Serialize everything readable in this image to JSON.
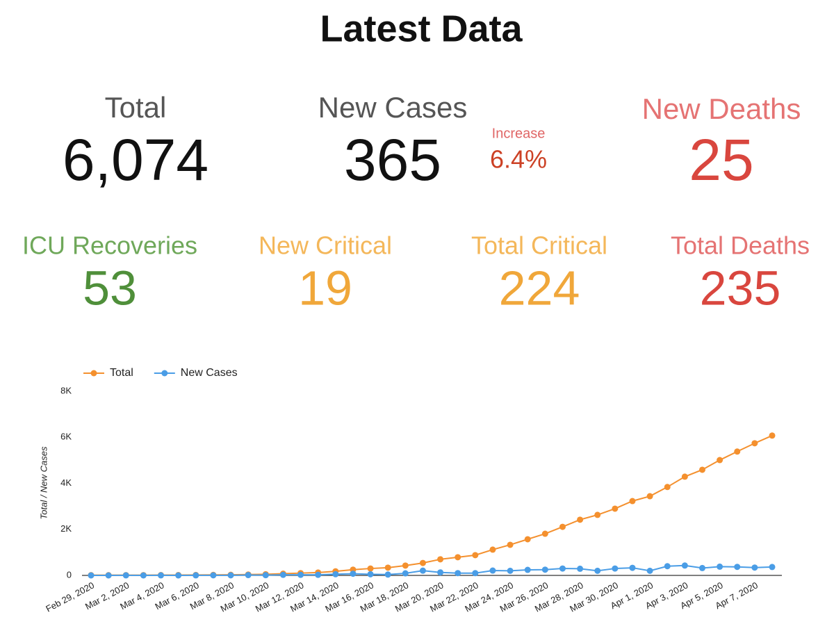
{
  "title": "Latest Data",
  "kpis": [
    {
      "label": "Total",
      "value": "6,074",
      "label_color": "#555555",
      "value_color": "#111111"
    },
    {
      "label": "New Cases",
      "value": "365",
      "label_color": "#555555",
      "value_color": "#111111"
    },
    {
      "label": "New Deaths",
      "value": "25",
      "label_color": "#e57373",
      "value_color": "#d9463e"
    },
    {
      "label": "ICU Recoveries",
      "value": "53",
      "label_color": "#6fa85a",
      "value_color": "#4f8f3a"
    },
    {
      "label": "New Critical",
      "value": "19",
      "label_color": "#f4b75a",
      "value_color": "#f0a73a"
    },
    {
      "label": "Total Critical",
      "value": "224",
      "label_color": "#f4b75a",
      "value_color": "#f0a73a"
    },
    {
      "label": "Total Deaths",
      "value": "235",
      "label_color": "#e57373",
      "value_color": "#d9463e"
    }
  ],
  "increase": {
    "label": "Increase",
    "value": "6.4%",
    "label_color": "#e06666",
    "value_color": "#cc4125"
  },
  "chart_data": {
    "type": "line",
    "ylabel": "Total / New Cases",
    "legend": "top-left",
    "grid": false,
    "categories": [
      "Feb 29, 2020",
      null,
      "Mar 2, 2020",
      null,
      "Mar 4, 2020",
      null,
      "Mar 6, 2020",
      null,
      "Mar 8, 2020",
      null,
      "Mar 10, 2020",
      null,
      "Mar 12, 2020",
      null,
      "Mar 14, 2020",
      null,
      "Mar 16, 2020",
      null,
      "Mar 18, 2020",
      null,
      "Mar 20, 2020",
      null,
      "Mar 22, 2020",
      null,
      "Mar 24, 2020",
      null,
      "Mar 26, 2020",
      null,
      "Mar 28, 2020",
      null,
      "Mar 30, 2020",
      null,
      "Apr 1, 2020",
      null,
      "Apr 3, 2020",
      null,
      "Apr 5, 2020",
      null,
      "Apr 7, 2020",
      null
    ],
    "series": [
      {
        "name": "Total",
        "color": "#f4902e",
        "values": [
          10,
          10,
          12,
          12,
          15,
          15,
          17,
          21,
          25,
          39,
          50,
          75,
          100,
          126,
          178,
          250,
          300,
          337,
          427,
          540,
          700,
          790,
          880,
          1120,
          1330,
          1570,
          1810,
          2110,
          2420,
          2630,
          2900,
          3230,
          3440,
          3840,
          4290,
          4590,
          5010,
          5380,
          5740,
          6074
        ]
      },
      {
        "name": "New Cases",
        "color": "#4a9de6",
        "values": [
          1,
          0,
          2,
          0,
          3,
          0,
          2,
          4,
          4,
          14,
          11,
          25,
          25,
          26,
          52,
          72,
          50,
          37,
          90,
          206,
          130,
          100,
          100,
          210,
          200,
          240,
          250,
          300,
          290,
          200,
          300,
          330,
          200,
          400,
          430,
          320,
          380,
          370,
          340,
          365
        ]
      }
    ],
    "ylim": [
      0,
      8000
    ],
    "yticks": [
      0,
      {
        "value": 2000,
        "label": "2K"
      },
      {
        "value": 4000,
        "label": "4K"
      },
      {
        "value": 6000,
        "label": "6K"
      },
      {
        "value": 8000,
        "label": "8K"
      }
    ]
  }
}
